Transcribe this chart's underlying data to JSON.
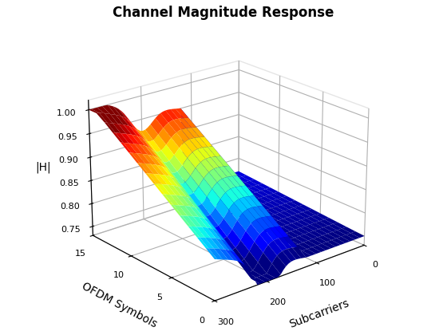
{
  "title": "Channel Magnitude Response",
  "xlabel": "OFDM Symbols",
  "ylabel": "Subcarriers",
  "zlabel": "|H|",
  "n_subcarriers": 60,
  "n_symbols": 16,
  "zlim": [
    0.73,
    1.02
  ],
  "zticks": [
    0.75,
    0.8,
    0.85,
    0.9,
    0.95,
    1.0
  ],
  "colormap": "jet",
  "view_elev": 22,
  "view_azim": -130,
  "background_color": "white"
}
